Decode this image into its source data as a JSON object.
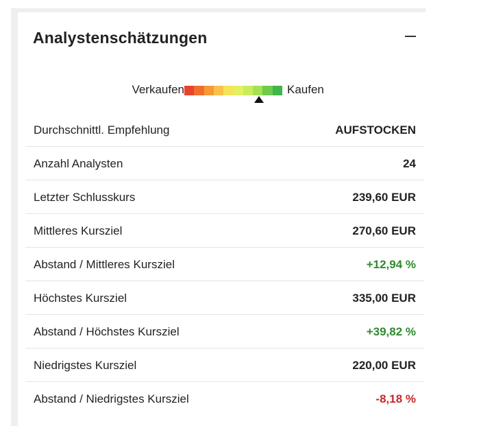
{
  "panel": {
    "title": "Analystenschätzungen",
    "collapse_icon": "minus-icon"
  },
  "rating_scale": {
    "left_label": "Verkaufen",
    "right_label": "Kaufen",
    "segment_colors": [
      "#e8442b",
      "#f06d2d",
      "#f59a35",
      "#f9c14a",
      "#f5e35a",
      "#e3f061",
      "#c9ec5e",
      "#a5e057",
      "#6ecb4c",
      "#3fb54a"
    ],
    "marker_position": 0.76,
    "marker_icon": "triangle-up-icon"
  },
  "metrics": [
    {
      "label": "Durchschnittl. Empfehlung",
      "value": "AUFSTOCKEN",
      "tone": "neutral"
    },
    {
      "label": "Anzahl Analysten",
      "value": "24",
      "tone": "neutral"
    },
    {
      "label": "Letzter Schlusskurs",
      "value": "239,60 EUR",
      "tone": "neutral"
    },
    {
      "label": "Mittleres Kursziel",
      "value": "270,60 EUR",
      "tone": "neutral"
    },
    {
      "label": "Abstand / Mittleres Kursziel",
      "value": "+12,94 %",
      "tone": "positive"
    },
    {
      "label": "Höchstes Kursziel",
      "value": "335,00 EUR",
      "tone": "neutral"
    },
    {
      "label": "Abstand / Höchstes Kursziel",
      "value": "+39,82 %",
      "tone": "positive"
    },
    {
      "label": "Niedrigstes Kursziel",
      "value": "220,00 EUR",
      "tone": "neutral"
    },
    {
      "label": "Abstand / Niedrigstes Kursziel",
      "value": "-8,18 %",
      "tone": "negative"
    }
  ],
  "colors": {
    "positive": "#2e8b2e",
    "negative": "#c62828",
    "text": "#222222",
    "divider": "#e4e4e4"
  }
}
